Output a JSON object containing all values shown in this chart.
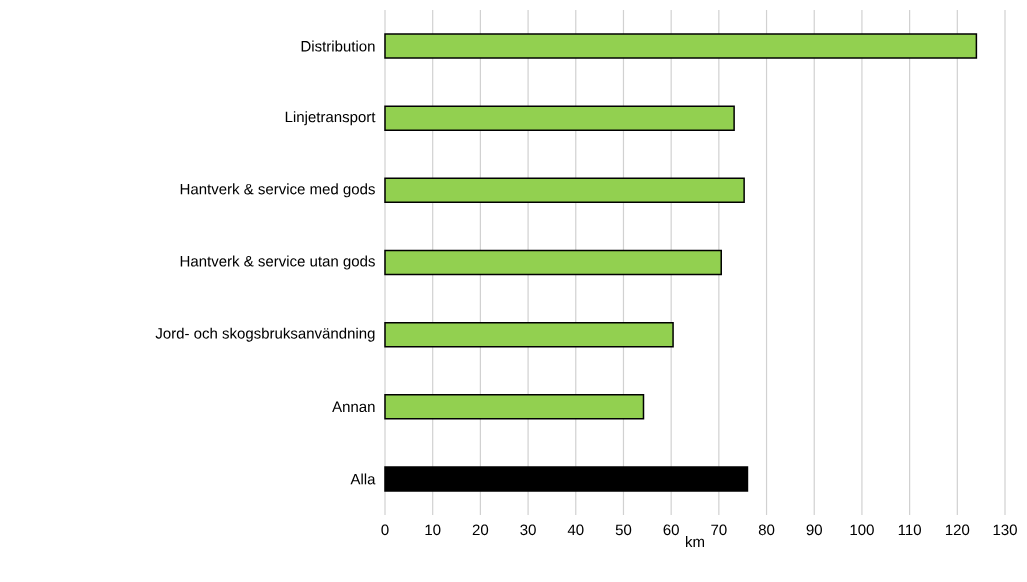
{
  "chart_data": {
    "type": "bar",
    "orientation": "horizontal",
    "xlabel": "km",
    "categories": [
      "Distribution",
      "Linjetransport",
      "Hantverk & service med gods",
      "Hantverk & service utan gods",
      "Jord- och skogsbruksanvändning",
      "Annan",
      "Alla"
    ],
    "values": [
      124.0,
      73.2,
      75.3,
      70.5,
      60.4,
      54.2,
      76.0
    ],
    "colors": [
      "#92d050",
      "#92d050",
      "#92d050",
      "#92d050",
      "#92d050",
      "#92d050",
      "#000000"
    ],
    "xlim": [
      0,
      130
    ],
    "xticks": [
      0,
      10,
      20,
      30,
      40,
      50,
      60,
      70,
      80,
      90,
      100,
      110,
      120,
      130
    ],
    "grid": "x"
  }
}
